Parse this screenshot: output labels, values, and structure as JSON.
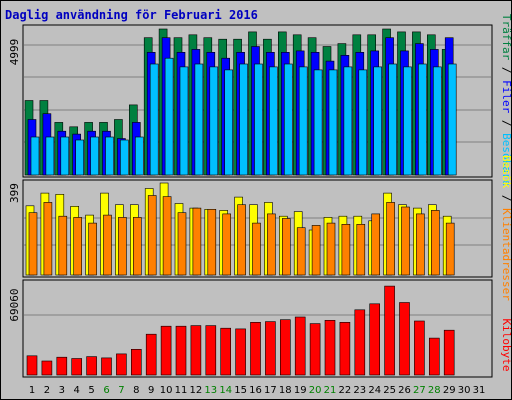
{
  "title": "Daglig användning för Februari 2016",
  "colors": {
    "background": "#c0c0c0",
    "panel": "#c0c0c0",
    "title": "#0000c0",
    "hits": "#008040",
    "files": "#0000ff",
    "pages": "#00c0ff",
    "visits": "#ffff00",
    "sites": "#ff8000",
    "kbytes": "#ff0000",
    "weekend_label": "#008000",
    "weekday_label": "#000000"
  },
  "legend": {
    "top": [
      {
        "text": "Träffar",
        "color": "#008040"
      },
      {
        "text": " / ",
        "color": "#000000"
      },
      {
        "text": "Filer",
        "color": "#0000ff"
      },
      {
        "text": " / ",
        "color": "#000000"
      },
      {
        "text": "Besökare",
        "color": "#00c0ff"
      }
    ],
    "middle": [
      {
        "text": "Besök",
        "color": "#ffff00"
      },
      {
        "text": " / ",
        "color": "#000000"
      },
      {
        "text": "Klientadresser",
        "color": "#ff8000"
      }
    ],
    "bottom": [
      {
        "text": "Kilobyte",
        "color": "#ff0000"
      }
    ]
  },
  "chart_data": {
    "type": "bar",
    "title": "Daglig användning för Februari 2016",
    "days": [
      "1",
      "2",
      "3",
      "4",
      "5",
      "6",
      "7",
      "8",
      "9",
      "10",
      "11",
      "12",
      "13",
      "14",
      "15",
      "16",
      "17",
      "18",
      "19",
      "20",
      "21",
      "22",
      "23",
      "24",
      "25",
      "26",
      "27",
      "28",
      "29",
      "30",
      "31"
    ],
    "weekend_days": [
      6,
      7,
      13,
      14,
      20,
      21,
      27,
      28
    ],
    "panels": [
      {
        "name": "top",
        "max_label": "4999",
        "ymax": 4999,
        "series": [
          {
            "name": "Träffar",
            "values": [
              2550,
              2550,
              1800,
              1650,
              1800,
              1800,
              1900,
              2400,
              4700,
              5000,
              4700,
              4800,
              4700,
              4650,
              4650,
              4900,
              4650,
              4900,
              4800,
              4700,
              4400,
              4500,
              4800,
              4800,
              5000,
              4900,
              4900,
              4800,
              4300,
              0,
              0
            ]
          },
          {
            "name": "Filer",
            "values": [
              1900,
              2100,
              1500,
              1400,
              1500,
              1500,
              1250,
              1800,
              4200,
              4700,
              4200,
              4300,
              4200,
              4000,
              4200,
              4400,
              4200,
              4200,
              4250,
              4200,
              3900,
              4100,
              4200,
              4250,
              4700,
              4250,
              4500,
              4300,
              4700,
              0,
              0
            ]
          },
          {
            "name": "Besökare",
            "values": [
              1300,
              1300,
              1300,
              1200,
              1300,
              1300,
              1200,
              1300,
              3800,
              4000,
              3700,
              3800,
              3700,
              3600,
              3800,
              3800,
              3700,
              3800,
              3700,
              3600,
              3600,
              3700,
              3600,
              3700,
              3800,
              3700,
              3800,
              3700,
              3800,
              0,
              0
            ]
          }
        ]
      },
      {
        "name": "middle",
        "max_label": "399",
        "ymax": 399,
        "series": [
          {
            "name": "Besök",
            "values": [
              300,
              355,
              350,
              298,
              260,
              355,
              305,
              305,
              375,
              399,
              310,
              290,
              285,
              280,
              338,
              305,
              315,
              255,
              275,
              195,
              250,
              255,
              255,
              235,
              355,
              305,
              290,
              305,
              255,
              0,
              0
            ]
          },
          {
            "name": "Klientadresser",
            "values": [
              270,
              315,
              255,
              250,
              225,
              260,
              250,
              250,
              345,
              340,
              270,
              290,
              285,
              265,
              305,
              225,
              265,
              245,
              205,
              215,
              225,
              220,
              220,
              265,
              315,
              295,
              265,
              280,
              225,
              0,
              0
            ]
          }
        ]
      },
      {
        "name": "bottom",
        "max_label": "69060",
        "ymax": 69060,
        "series": [
          {
            "name": "Kilobyte",
            "values": [
              14600,
              10600,
              13500,
              12500,
              14000,
              13000,
              16000,
              19500,
              31000,
              37000,
              37000,
              37500,
              37500,
              35500,
              35000,
              40000,
              40500,
              42000,
              44000,
              39000,
              41500,
              40000,
              49500,
              54000,
              67500,
              55000,
              41000,
              28000,
              34000,
              0,
              0
            ]
          }
        ]
      }
    ]
  }
}
